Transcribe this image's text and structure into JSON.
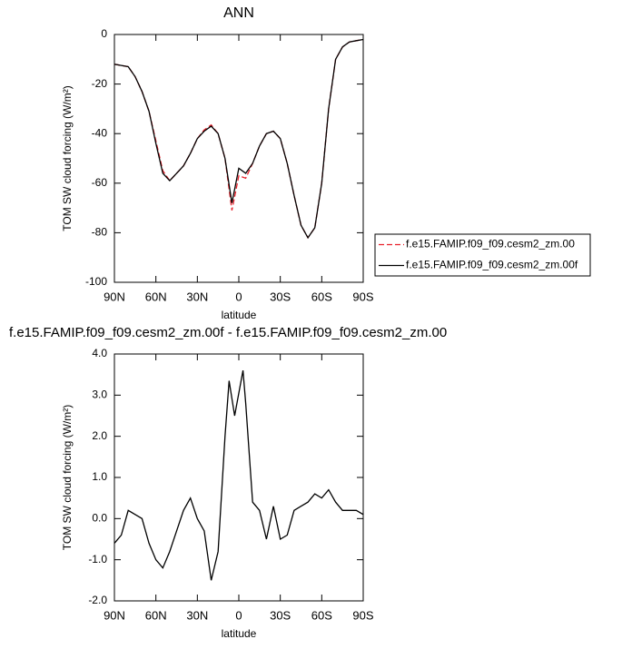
{
  "chart_data": [
    {
      "type": "line",
      "title": "ANN",
      "xlabel": "latitude",
      "ylabel": "TOM SW cloud forcing (W/m²)",
      "x": [
        90,
        85,
        80,
        75,
        70,
        65,
        60,
        55,
        50,
        45,
        40,
        35,
        30,
        25,
        20,
        15,
        10,
        5,
        0,
        -5,
        -10,
        -15,
        -20,
        -25,
        -30,
        -35,
        -40,
        -45,
        -50,
        -55,
        -60,
        -65,
        -70,
        -75,
        -80,
        -85,
        -90
      ],
      "series": [
        {
          "name": "f.e15.FAMIP.f09_f09.cesm2_zm.00",
          "color": "#e8202a",
          "dash": true,
          "values": [
            -12,
            -12.5,
            -13,
            -17,
            -23,
            -31,
            -43,
            -55,
            -59,
            -56,
            -53,
            -48,
            -42,
            -38.5,
            -36.5,
            -40,
            -50,
            -71,
            -57,
            -58,
            -52,
            -45,
            -40,
            -39,
            -42,
            -52,
            -65,
            -77,
            -82,
            -78,
            -60,
            -30,
            -10,
            -5,
            -3,
            -2.5,
            -2
          ]
        },
        {
          "name": "f.e15.FAMIP.f09_f09.cesm2_zm.00f",
          "color": "#000000",
          "dash": false,
          "values": [
            -12,
            -12.5,
            -13,
            -17,
            -23,
            -31,
            -44,
            -56,
            -59,
            -56,
            -53,
            -48,
            -42,
            -39,
            -37,
            -40,
            -50,
            -68,
            -54,
            -56,
            -52,
            -45,
            -40,
            -39,
            -42,
            -52,
            -65,
            -77,
            -82,
            -78,
            -60,
            -30,
            -10,
            -5,
            -3,
            -2.5,
            -2
          ]
        }
      ],
      "xlim": [
        90,
        -90
      ],
      "xticks": [
        {
          "value": 90,
          "label": "90N"
        },
        {
          "value": 60,
          "label": "60N"
        },
        {
          "value": 30,
          "label": "30N"
        },
        0,
        {
          "value": -30,
          "label": "30S"
        },
        {
          "value": -60,
          "label": "60S"
        },
        {
          "value": -90,
          "label": "90S"
        }
      ],
      "ylim": [
        -100,
        0
      ],
      "yticks": [
        -100,
        -80,
        -60,
        -40,
        -20,
        0
      ],
      "legend": "right"
    },
    {
      "type": "line",
      "title": "f.e15.FAMIP.f09_f09.cesm2_zm.00f - f.e15.FAMIP.f09_f09.cesm2_zm.00",
      "xlabel": "latitude",
      "ylabel": "TOM SW cloud forcing (W/m²)",
      "x": [
        90,
        85,
        80,
        75,
        70,
        65,
        60,
        55,
        50,
        45,
        40,
        35,
        30,
        25,
        20,
        15,
        10,
        7,
        3,
        -3,
        -5,
        -10,
        -15,
        -20,
        -25,
        -30,
        -35,
        -40,
        -45,
        -50,
        -55,
        -60,
        -65,
        -70,
        -75,
        -80,
        -85,
        -90
      ],
      "series": [
        {
          "color": "#000000",
          "dash": false,
          "values": [
            -0.6,
            -0.4,
            0.2,
            0.1,
            0.0,
            -0.6,
            -1.0,
            -1.2,
            -0.8,
            -0.3,
            0.2,
            0.5,
            0.0,
            -0.3,
            -1.5,
            -0.8,
            2.0,
            3.35,
            2.5,
            3.6,
            2.8,
            0.4,
            0.2,
            -0.5,
            0.3,
            -0.5,
            -0.4,
            0.2,
            0.3,
            0.4,
            0.6,
            0.5,
            0.7,
            0.4,
            0.2,
            0.2,
            0.2,
            0.1
          ]
        }
      ],
      "xlim": [
        90,
        -90
      ],
      "xticks": [
        {
          "value": 90,
          "label": "90N"
        },
        {
          "value": 60,
          "label": "60N"
        },
        {
          "value": 30,
          "label": "30N"
        },
        0,
        {
          "value": -30,
          "label": "30S"
        },
        {
          "value": -60,
          "label": "60S"
        },
        {
          "value": -90,
          "label": "90S"
        }
      ],
      "ylim": [
        -2,
        4
      ],
      "yticks": [
        {
          "value": -2,
          "label": "-2.0"
        },
        {
          "value": -1,
          "label": "-1.0"
        },
        {
          "value": 0,
          "label": "0.0"
        },
        {
          "value": 1,
          "label": "1.0"
        },
        {
          "value": 2,
          "label": "2.0"
        },
        {
          "value": 3,
          "label": "3.0"
        },
        {
          "value": 4,
          "label": "4.0"
        }
      ]
    }
  ]
}
